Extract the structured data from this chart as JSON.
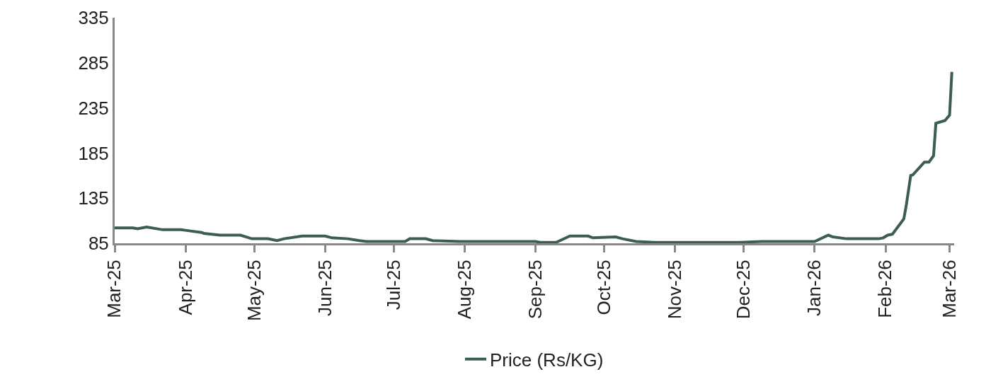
{
  "chart_data": {
    "type": "line",
    "x": [
      "2025-03-01",
      "2025-03-09",
      "2025-03-11",
      "2025-03-15",
      "2025-03-22",
      "2025-03-30",
      "2025-04-02",
      "2025-04-08",
      "2025-04-09",
      "2025-04-16",
      "2025-04-25",
      "2025-04-30",
      "2025-05-07",
      "2025-05-11",
      "2025-05-14",
      "2025-05-22",
      "2025-06-01",
      "2025-06-04",
      "2025-06-11",
      "2025-06-16",
      "2025-06-19",
      "2025-07-06",
      "2025-07-08",
      "2025-07-15",
      "2025-07-18",
      "2025-07-30",
      "2025-09-01",
      "2025-09-03",
      "2025-09-10",
      "2025-09-16",
      "2025-09-24",
      "2025-09-26",
      "2025-10-06",
      "2025-10-09",
      "2025-10-15",
      "2025-10-23",
      "2025-11-26",
      "2025-11-29",
      "2025-12-09",
      "2026-01-01",
      "2026-01-07",
      "2026-01-09",
      "2026-01-15",
      "2026-01-22",
      "2026-01-25",
      "2026-01-29",
      "2026-01-31",
      "2026-02-02",
      "2026-02-04",
      "2026-02-09",
      "2026-02-10",
      "2026-02-12",
      "2026-02-13",
      "2026-02-18",
      "2026-02-20",
      "2026-02-22",
      "2026-02-23",
      "2026-02-27",
      "2026-03-01",
      "2026-03-02"
    ],
    "series": [
      {
        "name": "Price (Rs/KG)",
        "color": "#3b5e4e",
        "values": [
          102,
          102,
          101,
          103,
          100,
          100,
          99,
          97,
          96,
          94,
          94,
          90,
          90,
          88,
          90,
          93,
          93,
          91,
          90,
          88,
          87,
          87,
          90,
          90,
          88,
          87,
          87,
          86,
          86,
          93,
          93,
          91,
          92,
          90,
          87,
          86,
          86,
          86,
          87,
          87,
          94,
          92,
          90,
          90,
          90,
          90,
          91,
          94,
          95,
          112,
          126,
          160,
          161,
          175,
          175,
          182,
          218,
          221,
          227,
          275
        ]
      }
    ],
    "xlim": [
      "2025-03-01",
      "2026-03-03"
    ],
    "xticks": [
      {
        "value": "2025-03-01",
        "label": "Mar-25"
      },
      {
        "value": "2025-04-01",
        "label": "Apr-25"
      },
      {
        "value": "2025-05-01",
        "label": "May-25"
      },
      {
        "value": "2025-06-01",
        "label": "Jun-25"
      },
      {
        "value": "2025-07-01",
        "label": "Jul-25"
      },
      {
        "value": "2025-08-01",
        "label": "Aug-25"
      },
      {
        "value": "2025-09-01",
        "label": "Sep-25"
      },
      {
        "value": "2025-10-01",
        "label": "Oct-25"
      },
      {
        "value": "2025-11-01",
        "label": "Nov-25"
      },
      {
        "value": "2025-12-01",
        "label": "Dec-25"
      },
      {
        "value": "2026-01-01",
        "label": "Jan-26"
      },
      {
        "value": "2026-02-01",
        "label": "Feb-26"
      },
      {
        "value": "2026-03-01",
        "label": "Mar-26"
      }
    ],
    "ylim": [
      85,
      335
    ],
    "yticks": [
      85,
      135,
      185,
      235,
      285,
      335
    ],
    "grid": false,
    "legend": "bottom",
    "marker": "none",
    "line_style": "solid"
  }
}
